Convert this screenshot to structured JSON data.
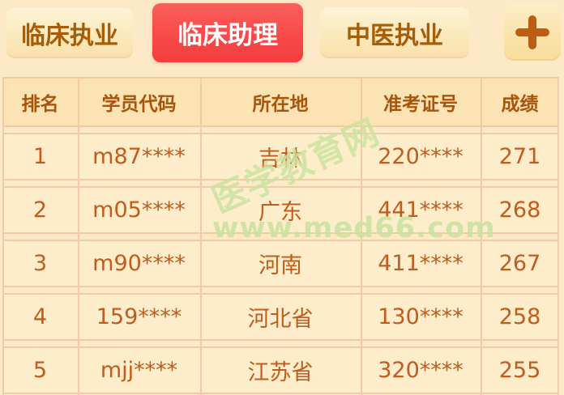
{
  "tab_bar": {
    "tabs": [
      {
        "label": "临床执业",
        "active": false
      },
      {
        "label": "临床助理",
        "active": true
      },
      {
        "label": "中医执业",
        "active": false
      }
    ],
    "add_button_icon": "plus-icon"
  },
  "ranking_table": {
    "columns": [
      "排名",
      "学员代码",
      "所在地",
      "准考证号",
      "成绩"
    ],
    "rows": [
      {
        "rank": "1",
        "student_code": "m87****",
        "location": "吉林",
        "ticket_no": "220****",
        "score": "271"
      },
      {
        "rank": "2",
        "student_code": "m05****",
        "location": "广东",
        "ticket_no": "441****",
        "score": "268"
      },
      {
        "rank": "3",
        "student_code": "m90****",
        "location": "河南",
        "ticket_no": "411****",
        "score": "267"
      },
      {
        "rank": "4",
        "student_code": "159****",
        "location": "河北省",
        "ticket_no": "130****",
        "score": "258"
      },
      {
        "rank": "5",
        "student_code": "mjj****",
        "location": "江苏省",
        "ticket_no": "320****",
        "score": "255"
      }
    ]
  },
  "watermark": {
    "site_name": "医学教育网",
    "site_url": "www.med66.com"
  },
  "colors": {
    "page_background": "#fce9c7",
    "active_tab_red": "#f84a49",
    "tab_text_brown": "#a75c06",
    "header_text_brown": "#a9540a",
    "cell_text_orange": "#c25c1d",
    "table_border": "#f2cba6",
    "header_cell_background": "#fbe3b4",
    "row_cell_background": "#fdedca",
    "watermark_green": "#cbe3a0"
  }
}
